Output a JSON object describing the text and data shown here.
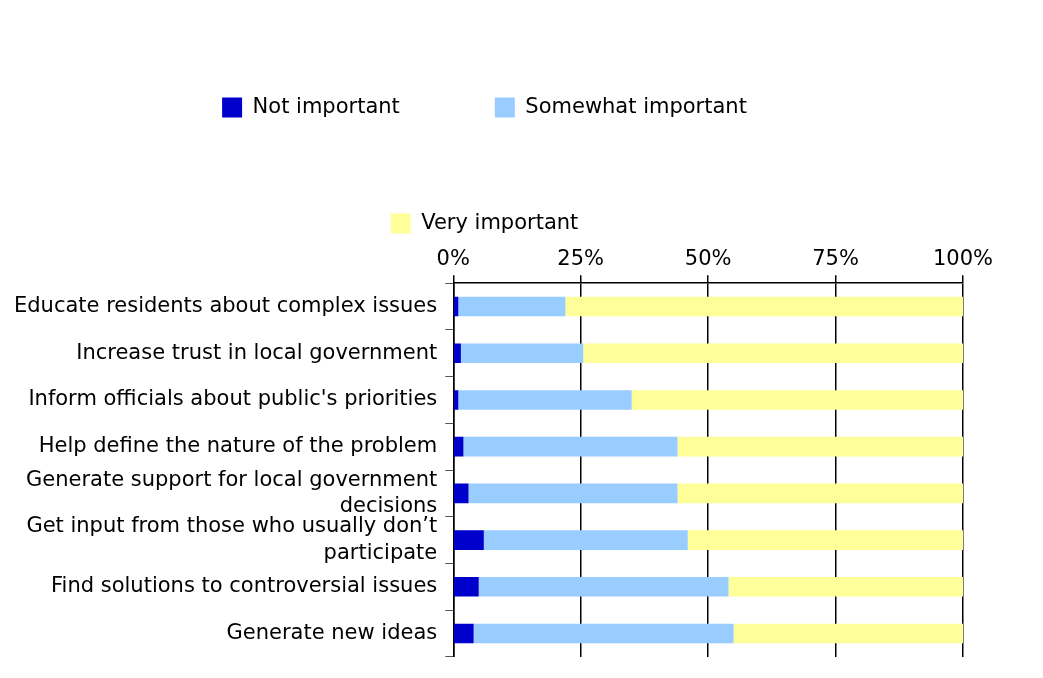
{
  "chart_data": {
    "type": "bar",
    "orientation": "horizontal",
    "stacked": true,
    "categories": [
      "Educate residents about complex issues",
      "Increase trust in local government",
      "Inform officials about public's priorities",
      "Help define the nature of the problem",
      "Generate support for local government decisions",
      "Get input from those who usually don’t participate",
      "Find solutions to controversial issues",
      "Generate new ideas"
    ],
    "series": [
      {
        "name": "Not important",
        "color": "#0000cc",
        "values": [
          1,
          1.5,
          1,
          2,
          3,
          6,
          5,
          4
        ]
      },
      {
        "name": "Somewhat important",
        "color": "#99ccff",
        "values": [
          21,
          24,
          34,
          42,
          41,
          40,
          49,
          51
        ]
      },
      {
        "name": "Very important",
        "color": "#ffff99",
        "values": [
          78,
          74.5,
          65,
          56,
          56,
          54,
          46,
          45
        ]
      }
    ],
    "xlim": [
      0,
      100
    ],
    "xticks": [
      {
        "value": 0,
        "label": "0%"
      },
      {
        "value": 25,
        "label": "25%"
      },
      {
        "value": 50,
        "label": "50%"
      },
      {
        "value": 75,
        "label": "75%"
      },
      {
        "value": 100,
        "label": "100%"
      }
    ],
    "grid": "x",
    "legend": "top"
  }
}
